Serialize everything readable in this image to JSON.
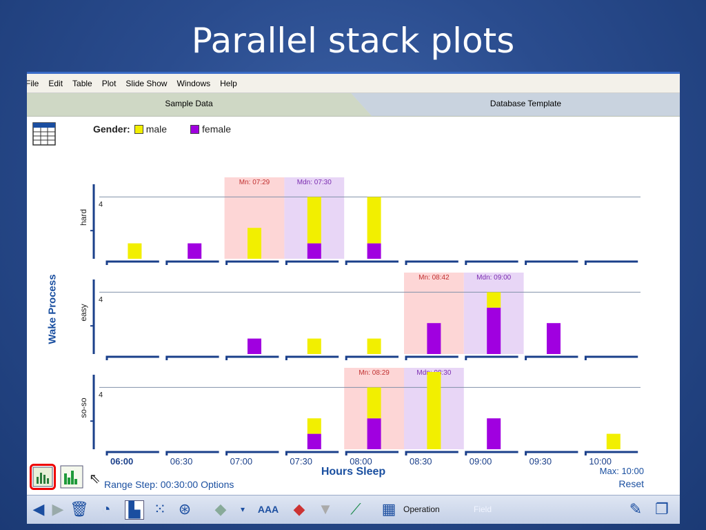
{
  "slide": {
    "title": "Parallel stack plots"
  },
  "menu": [
    "File",
    "Edit",
    "Table",
    "Plot",
    "Slide Show",
    "Windows",
    "Help"
  ],
  "tabs": {
    "active": "Sample Data",
    "inactive": "Database Template"
  },
  "legend": {
    "label": "Gender:",
    "items": [
      {
        "name": "male",
        "color": "#f2ef00"
      },
      {
        "name": "female",
        "color": "#a000e0"
      }
    ]
  },
  "y_axis_title": "Wake Process",
  "x_axis_title": "Hours Sleep",
  "range_text": "Range Step: 00:30:00 Options",
  "max_text": "Max: 10:00",
  "reset_text": "Reset",
  "bottom_toolbar": {
    "operation": "Operation",
    "field": "Field",
    "font_label": "AAA"
  },
  "chart_data": {
    "type": "bar",
    "categories": [
      "06:00",
      "06:30",
      "07:00",
      "07:30",
      "08:00",
      "08:30",
      "09:00",
      "09:30",
      "10:00"
    ],
    "series_colors": {
      "male": "#f2ef00",
      "female": "#a000e0"
    },
    "panels": [
      {
        "name": "hard",
        "ref_value": 4,
        "mean_label": "Mn: 07:29",
        "median_label": "Mdn: 07:30",
        "mean_bin": 2,
        "median_bin": 3,
        "male": [
          1,
          0,
          2,
          3,
          3,
          0,
          0,
          0,
          0
        ],
        "female": [
          0,
          1,
          0,
          1,
          1,
          0,
          0,
          0,
          0
        ]
      },
      {
        "name": "easy",
        "ref_value": 4,
        "mean_label": "Mn: 08:42",
        "median_label": "Mdn: 09:00",
        "mean_bin": 5,
        "median_bin": 6,
        "male": [
          0,
          0,
          0,
          1,
          1,
          0,
          1,
          0,
          0
        ],
        "female": [
          0,
          0,
          1,
          0,
          0,
          2,
          3,
          2,
          0
        ]
      },
      {
        "name": "so-so",
        "ref_value": 4,
        "mean_label": "Mn: 08:29",
        "median_label": "Mdn: 08:30",
        "mean_bin": 4,
        "median_bin": 5,
        "male": [
          0,
          0,
          0,
          1,
          2,
          5,
          0,
          0,
          1
        ],
        "female": [
          0,
          0,
          0,
          1,
          2,
          0,
          2,
          0,
          0
        ]
      }
    ],
    "colors": {
      "mean_band": "#fdd6d6",
      "median_band": "#e8d6f6",
      "axis": "#1a3f8a"
    }
  }
}
